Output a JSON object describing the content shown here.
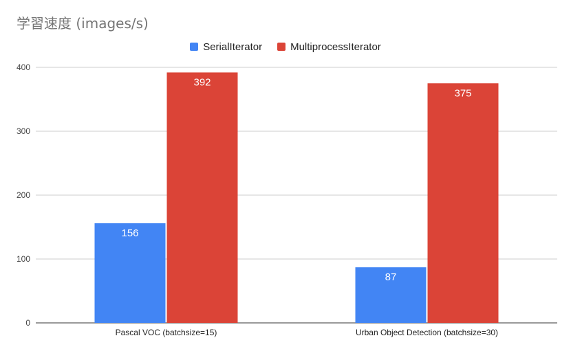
{
  "chart_data": {
    "type": "bar",
    "title": "学習速度 (images/s)",
    "categories": [
      "Pascal VOC (batchsize=15)",
      "Urban Object Detection (batchsize=30)"
    ],
    "series": [
      {
        "name": "SerialIterator",
        "values": [
          156,
          87
        ],
        "color": "#4285f4"
      },
      {
        "name": "MultiprocessIterator",
        "values": [
          392,
          375
        ],
        "color": "#db4437"
      }
    ],
    "ylim": [
      0,
      400
    ],
    "yticks": [
      0,
      100,
      200,
      300,
      400
    ],
    "grid": true,
    "legend_position": "top-center",
    "data_labels": true
  }
}
